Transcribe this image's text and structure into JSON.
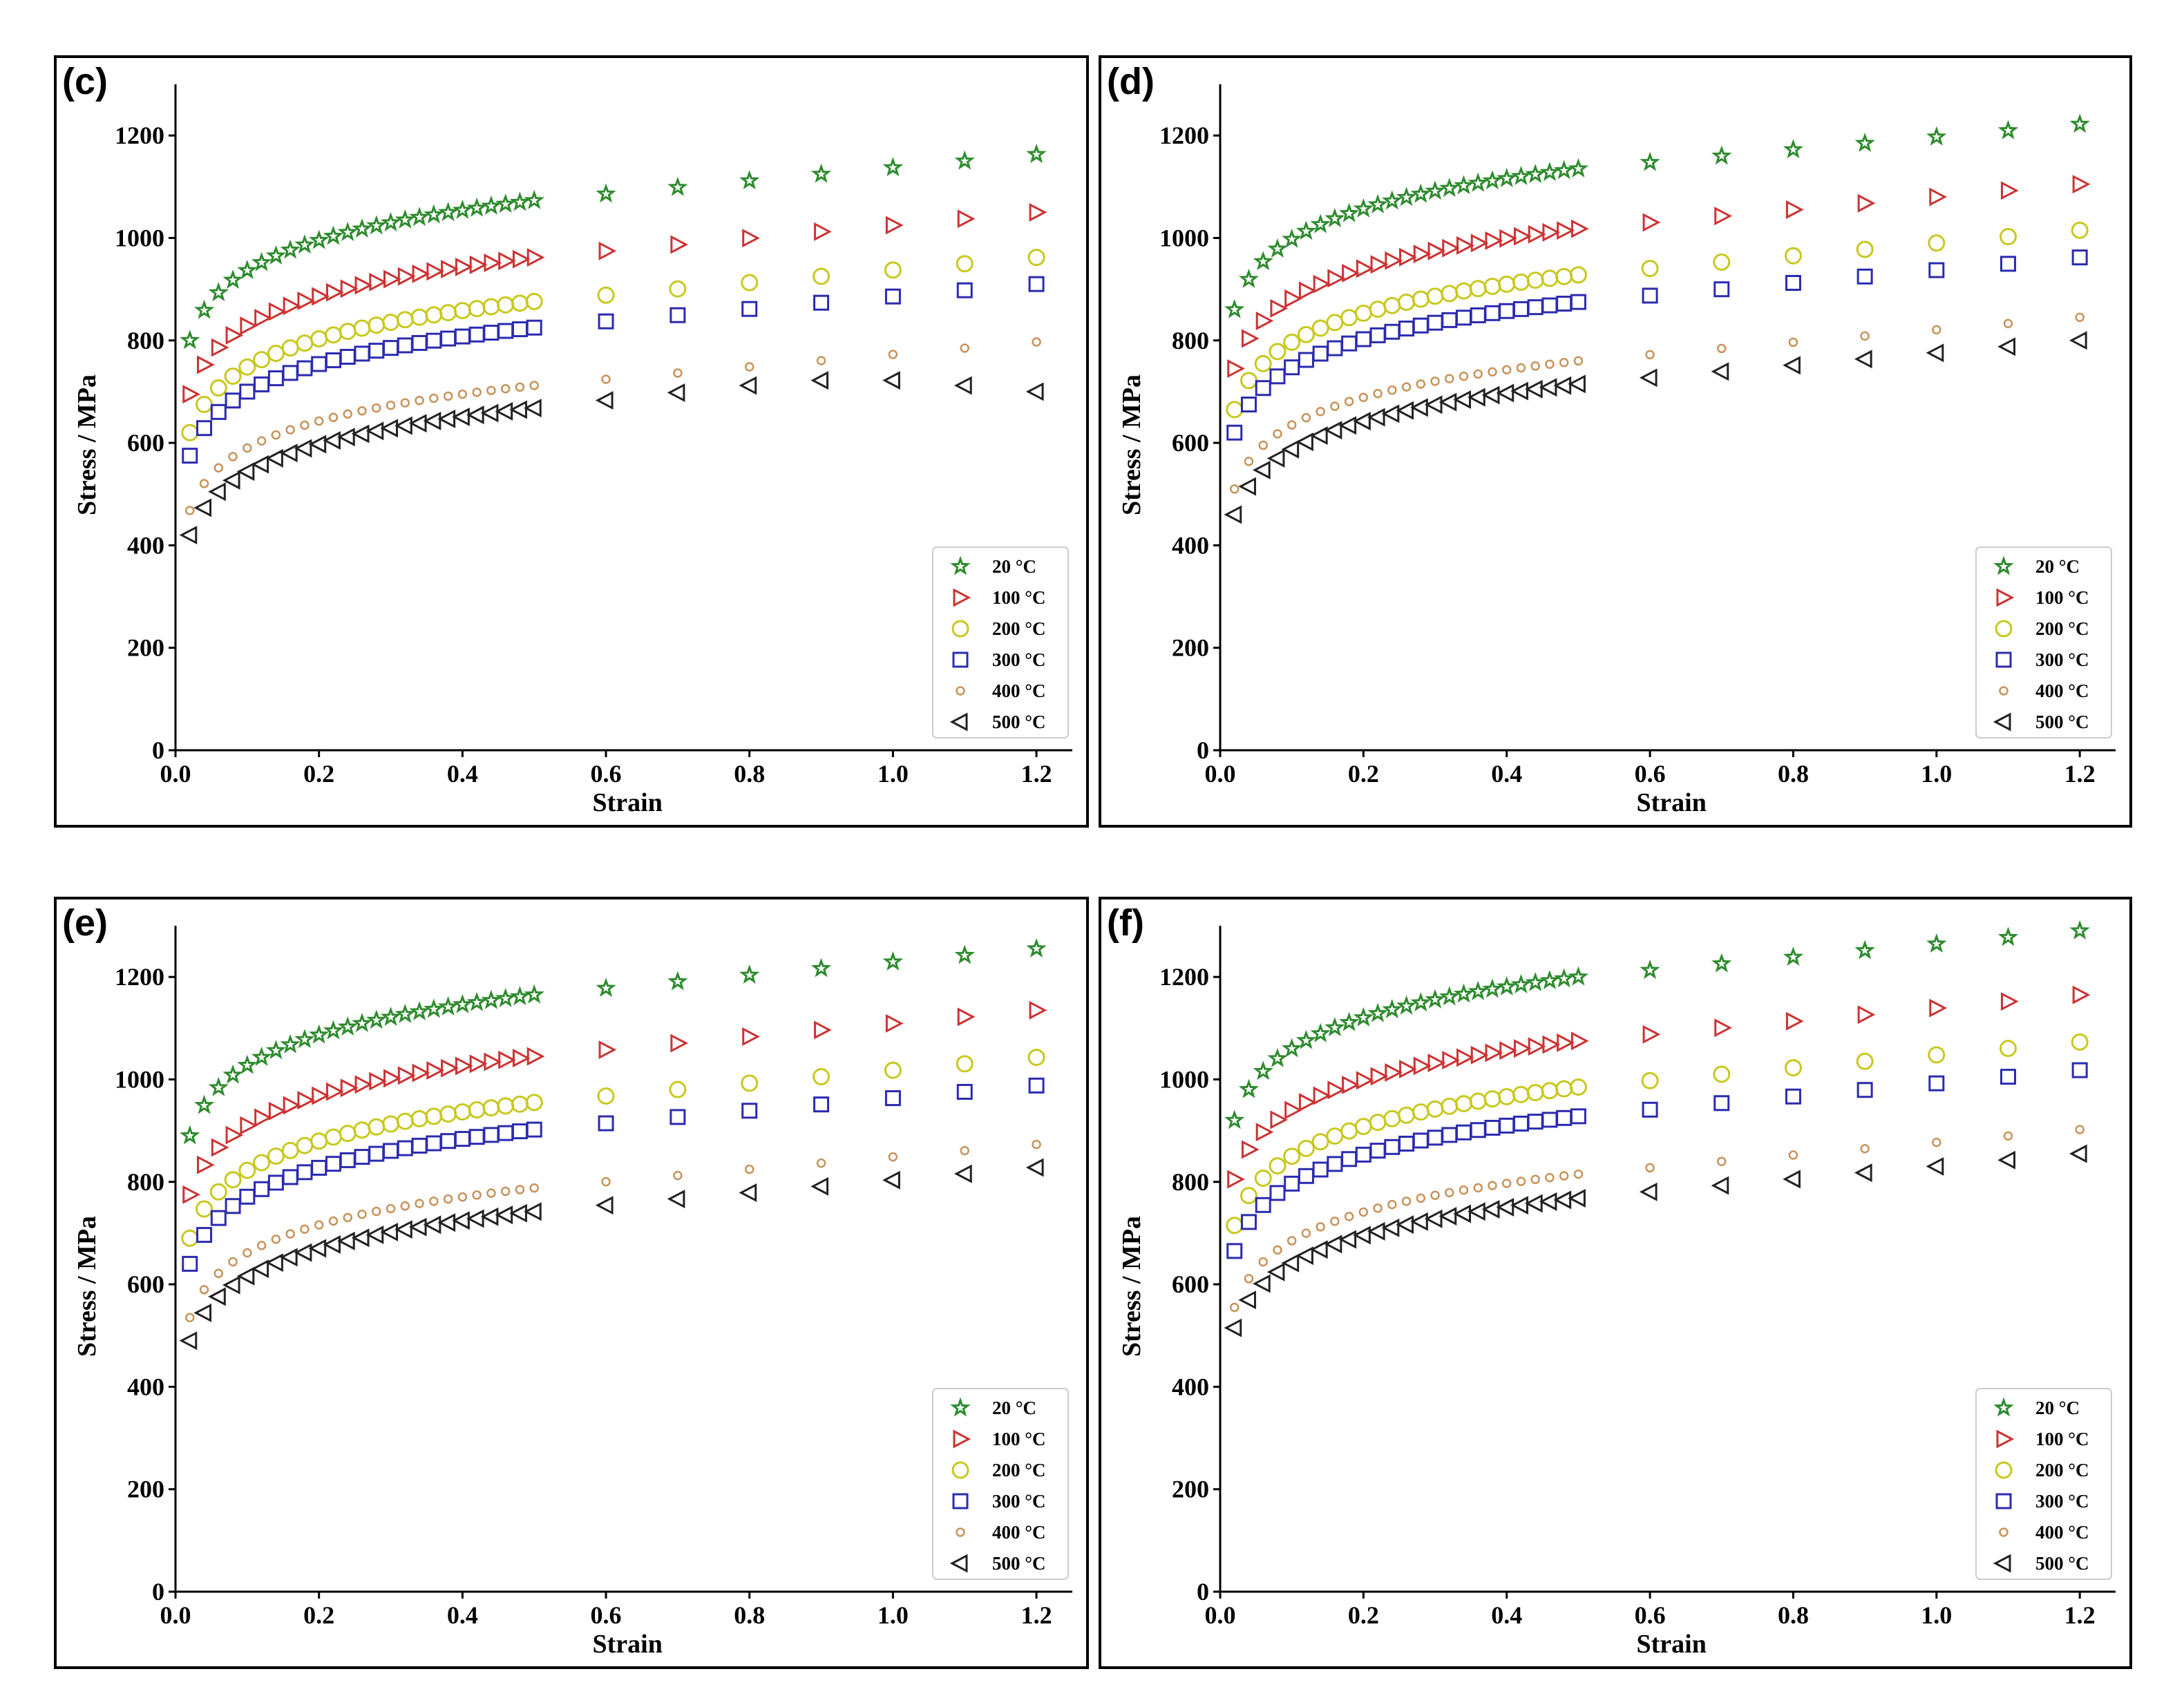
{
  "chart_data": [
    {
      "type": "scatter",
      "panel_label": "(c)",
      "xlabel": "Strain",
      "ylabel": "Stress / MPa",
      "xlim": [
        0,
        1.25
      ],
      "ylim": [
        0,
        1300
      ],
      "xticks": [
        0.0,
        0.2,
        0.4,
        0.6,
        0.8,
        1.0,
        1.2
      ],
      "xtick_labels": [
        "0.0",
        "0.2",
        "0.4",
        "0.6",
        "0.8",
        "1.0",
        "1.2"
      ],
      "yticks": [
        0,
        200,
        400,
        600,
        800,
        1000,
        1200
      ],
      "ytick_labels": [
        "0",
        "200",
        "400",
        "600",
        "800",
        "1000",
        "1200"
      ],
      "legend_position": "bottom-right",
      "grid": false,
      "series": [
        {
          "name": "20 °C",
          "marker": "star",
          "color": "#2e8b2e",
          "start": 800,
          "end05": 1073,
          "end12": 1163
        },
        {
          "name": "100 °C",
          "marker": "triangle-right",
          "color": "#cc3333",
          "start": 695,
          "end05": 962,
          "end12": 1050
        },
        {
          "name": "200 °C",
          "marker": "circle",
          "color": "#c8c81e",
          "start": 620,
          "end05": 876,
          "end12": 962
        },
        {
          "name": "300 °C",
          "marker": "square",
          "color": "#2b2bb0",
          "start": 575,
          "end05": 825,
          "end12": 910
        },
        {
          "name": "400 °C",
          "marker": "small-circle",
          "color": "#c8925a",
          "start": 468,
          "end05": 712,
          "end12": 797
        },
        {
          "name": "500 °C",
          "marker": "triangle-left",
          "color": "#222222",
          "start": 420,
          "end05": 668,
          "end12": 700,
          "tail": [
            683,
            698,
            712,
            722,
            722,
            712,
            700
          ]
        }
      ]
    },
    {
      "type": "scatter",
      "panel_label": "(d)",
      "xlabel": "Strain",
      "ylabel": "Stress / MPa",
      "xlim": [
        0,
        1.25
      ],
      "ylim": [
        0,
        1300
      ],
      "xticks": [
        0.0,
        0.2,
        0.4,
        0.6,
        0.8,
        1.0,
        1.2
      ],
      "xtick_labels": [
        "0.0",
        "0.2",
        "0.4",
        "0.6",
        "0.8",
        "1.0",
        "1.2"
      ],
      "yticks": [
        0,
        200,
        400,
        600,
        800,
        1000,
        1200
      ],
      "ytick_labels": [
        "0",
        "200",
        "400",
        "600",
        "800",
        "1000",
        "1200"
      ],
      "legend_position": "bottom-right",
      "grid": false,
      "series": [
        {
          "name": "20 °C",
          "marker": "star",
          "color": "#2e8b2e",
          "start": 860,
          "end05": 1135,
          "end12": 1222
        },
        {
          "name": "100 °C",
          "marker": "triangle-right",
          "color": "#cc3333",
          "start": 745,
          "end05": 1018,
          "end12": 1105
        },
        {
          "name": "200 °C",
          "marker": "circle",
          "color": "#c8c81e",
          "start": 665,
          "end05": 928,
          "end12": 1015
        },
        {
          "name": "300 °C",
          "marker": "square",
          "color": "#2b2bb0",
          "start": 620,
          "end05": 875,
          "end12": 962
        },
        {
          "name": "400 °C",
          "marker": "small-circle",
          "color": "#c8925a",
          "start": 510,
          "end05": 760,
          "end12": 845
        },
        {
          "name": "500 °C",
          "marker": "triangle-left",
          "color": "#222222",
          "start": 460,
          "end05": 715,
          "end12": 800
        }
      ]
    },
    {
      "type": "scatter",
      "panel_label": "(e)",
      "xlabel": "Strain",
      "ylabel": "Stress / MPa",
      "xlim": [
        0,
        1.25
      ],
      "ylim": [
        0,
        1300
      ],
      "xticks": [
        0.0,
        0.2,
        0.4,
        0.6,
        0.8,
        1.0,
        1.2
      ],
      "xtick_labels": [
        "0.0",
        "0.2",
        "0.4",
        "0.6",
        "0.8",
        "1.0",
        "1.2"
      ],
      "yticks": [
        0,
        200,
        400,
        600,
        800,
        1000,
        1200
      ],
      "ytick_labels": [
        "0",
        "200",
        "400",
        "600",
        "800",
        "1000",
        "1200"
      ],
      "legend_position": "bottom-right",
      "grid": false,
      "series": [
        {
          "name": "20 °C",
          "marker": "star",
          "color": "#2e8b2e",
          "start": 890,
          "end05": 1165,
          "end12": 1255
        },
        {
          "name": "100 °C",
          "marker": "triangle-right",
          "color": "#cc3333",
          "start": 775,
          "end05": 1045,
          "end12": 1135
        },
        {
          "name": "200 °C",
          "marker": "circle",
          "color": "#c8c81e",
          "start": 690,
          "end05": 955,
          "end12": 1043
        },
        {
          "name": "300 °C",
          "marker": "square",
          "color": "#2b2bb0",
          "start": 640,
          "end05": 902,
          "end12": 988
        },
        {
          "name": "400 °C",
          "marker": "small-circle",
          "color": "#c8925a",
          "start": 535,
          "end05": 788,
          "end12": 873
        },
        {
          "name": "500 °C",
          "marker": "triangle-left",
          "color": "#222222",
          "start": 490,
          "end05": 742,
          "end12": 828
        }
      ]
    },
    {
      "type": "scatter",
      "panel_label": "(f)",
      "xlabel": "Strain",
      "ylabel": "Stress / MPa",
      "xlim": [
        0,
        1.25
      ],
      "ylim": [
        0,
        1300
      ],
      "xticks": [
        0.0,
        0.2,
        0.4,
        0.6,
        0.8,
        1.0,
        1.2
      ],
      "xtick_labels": [
        "0.0",
        "0.2",
        "0.4",
        "0.6",
        "0.8",
        "1.0",
        "1.2"
      ],
      "yticks": [
        0,
        200,
        400,
        600,
        800,
        1000,
        1200
      ],
      "ytick_labels": [
        "0",
        "200",
        "400",
        "600",
        "800",
        "1000",
        "1200"
      ],
      "legend_position": "bottom-right",
      "grid": false,
      "series": [
        {
          "name": "20 °C",
          "marker": "star",
          "color": "#2e8b2e",
          "start": 920,
          "end05": 1200,
          "end12": 1290
        },
        {
          "name": "100 °C",
          "marker": "triangle-right",
          "color": "#cc3333",
          "start": 805,
          "end05": 1075,
          "end12": 1165
        },
        {
          "name": "200 °C",
          "marker": "circle",
          "color": "#c8c81e",
          "start": 715,
          "end05": 985,
          "end12": 1073
        },
        {
          "name": "300 °C",
          "marker": "square",
          "color": "#2b2bb0",
          "start": 665,
          "end05": 928,
          "end12": 1018
        },
        {
          "name": "400 °C",
          "marker": "small-circle",
          "color": "#c8925a",
          "start": 555,
          "end05": 815,
          "end12": 902
        },
        {
          "name": "500 °C",
          "marker": "triangle-left",
          "color": "#222222",
          "start": 515,
          "end05": 768,
          "end12": 855
        }
      ]
    }
  ]
}
